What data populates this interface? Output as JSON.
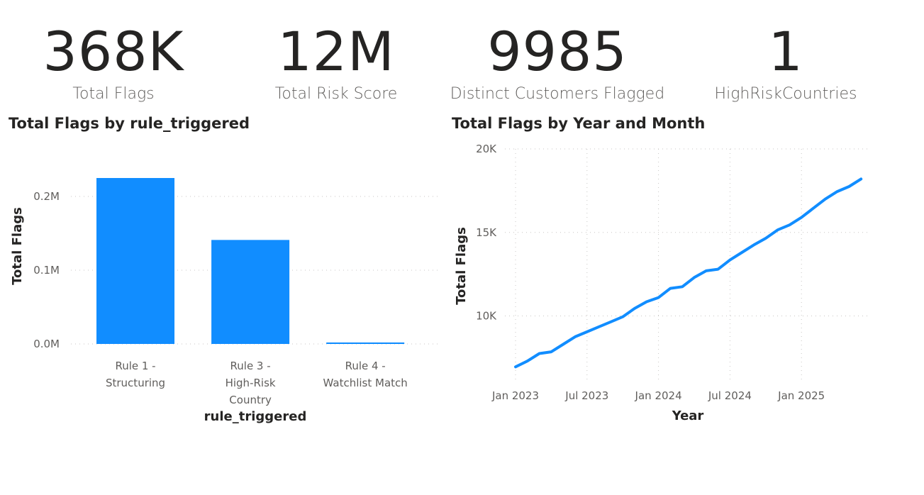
{
  "kpis": [
    {
      "value": "368K",
      "label": "Total Flags"
    },
    {
      "value": "12M",
      "label": "Total Risk Score"
    },
    {
      "value": "9985",
      "label": "Distinct Customers Flagged"
    },
    {
      "value": "1",
      "label": "HighRiskCountries"
    }
  ],
  "colors": {
    "series": "#118dff"
  },
  "chart_data": [
    {
      "type": "bar",
      "title": "Total Flags by rule_triggered",
      "xlabel": "rule_triggered",
      "ylabel": "Total Flags",
      "categories": [
        "Rule 1 - Structuring",
        "Rule 3 - High-Risk Country",
        "Rule 4 - Watchlist Match"
      ],
      "category_lines": [
        [
          "Rule 1 -",
          "Structuring"
        ],
        [
          "Rule 3 -",
          "High-Risk",
          "Country"
        ],
        [
          "Rule 4 -",
          "Watchlist Match"
        ]
      ],
      "values": [
        225000,
        141000,
        2000
      ],
      "ylim": [
        0,
        250000
      ],
      "yticks": [
        {
          "v": 0,
          "label": "0.0M"
        },
        {
          "v": 100000,
          "label": "0.1M"
        },
        {
          "v": 200000,
          "label": "0.2M"
        }
      ],
      "grid": true
    },
    {
      "type": "line",
      "title": "Total Flags by Year and Month",
      "xlabel": "Year",
      "ylabel": "Total Flags",
      "x": [
        "2023-01",
        "2023-02",
        "2023-03",
        "2023-04",
        "2023-05",
        "2023-06",
        "2023-07",
        "2023-08",
        "2023-09",
        "2023-10",
        "2023-11",
        "2023-12",
        "2024-01",
        "2024-02",
        "2024-03",
        "2024-04",
        "2024-05",
        "2024-06",
        "2024-07",
        "2024-08",
        "2024-09",
        "2024-10",
        "2024-11",
        "2024-12",
        "2025-01",
        "2025-02",
        "2025-03",
        "2025-04",
        "2025-05",
        "2025-06"
      ],
      "values": [
        6950,
        7300,
        7750,
        7850,
        8300,
        8750,
        9050,
        9350,
        9650,
        9950,
        10450,
        10850,
        11100,
        11650,
        11750,
        12300,
        12700,
        12800,
        13350,
        13800,
        14250,
        14650,
        15150,
        15450,
        15900,
        16450,
        17000,
        17450,
        17750,
        18200
      ],
      "ylim": [
        6200,
        20000
      ],
      "yticks": [
        {
          "v": 10000,
          "label": "10K"
        },
        {
          "v": 15000,
          "label": "15K"
        },
        {
          "v": 20000,
          "label": "20K"
        }
      ],
      "xticks": [
        {
          "x": "2023-01",
          "label": "Jan 2023"
        },
        {
          "x": "2023-07",
          "label": "Jul 2023"
        },
        {
          "x": "2024-01",
          "label": "Jan 2024"
        },
        {
          "x": "2024-07",
          "label": "Jul 2024"
        },
        {
          "x": "2025-01",
          "label": "Jan 2025"
        }
      ],
      "grid": true
    }
  ]
}
